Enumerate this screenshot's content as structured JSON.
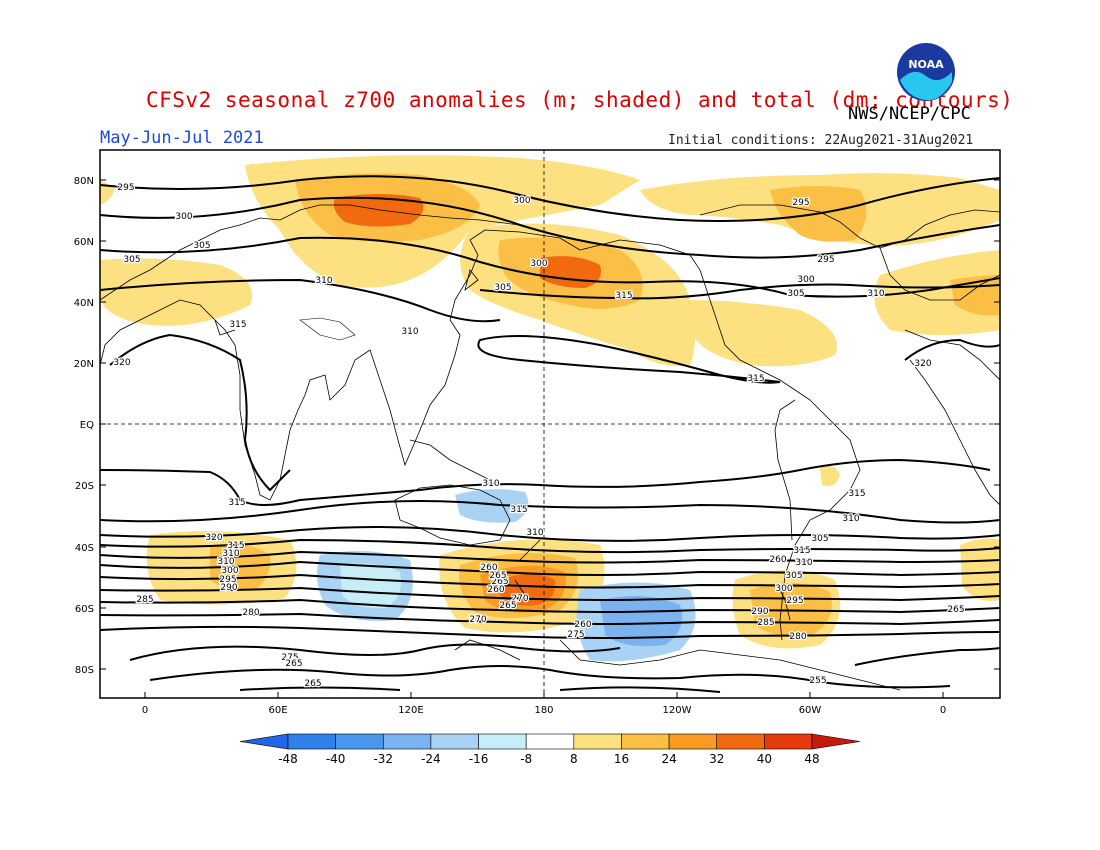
{
  "header": {
    "title": "CFSv2 seasonal z700 anomalies (m; shaded) and total (dm; contours)",
    "org": "NWS/NCEP/CPC",
    "period": "May-Jun-Jul 2021",
    "initial_conditions": "Initial conditions: 22Aug2021-31Aug2021",
    "logo_text": "NOAA"
  },
  "map": {
    "lon_labels": [
      "0",
      "60E",
      "120E",
      "180",
      "120W",
      "60W",
      "0"
    ],
    "lat_labels": [
      "80N",
      "60N",
      "40N",
      "20N",
      "EQ",
      "20S",
      "40S",
      "60S",
      "80S"
    ],
    "colorbar_labels": [
      "-48",
      "-40",
      "-32",
      "-24",
      "-16",
      "-8",
      "8",
      "16",
      "24",
      "32",
      "40",
      "48"
    ],
    "colorbar_colors": [
      "#2166e6",
      "#2f80e8",
      "#4a97ec",
      "#7ab3f0",
      "#a9d3f5",
      "#c7eef7",
      "#ffffff",
      "#fde080",
      "#fbbf45",
      "#f99a22",
      "#f26a10",
      "#e43a0c",
      "#c51b0c"
    ],
    "contour_labels": [
      "295",
      "300",
      "305",
      "310",
      "315",
      "320",
      "305",
      "310",
      "300",
      "305",
      "315",
      "300",
      "295",
      "295",
      "300",
      "305",
      "310",
      "315",
      "310",
      "315",
      "310",
      "315",
      "320",
      "315",
      "320",
      "315",
      "310",
      "310",
      "300",
      "295",
      "290",
      "285",
      "280",
      "275",
      "270",
      "265",
      "265",
      "260",
      "265",
      "260",
      "305",
      "310",
      "315",
      "310",
      "305",
      "300",
      "295",
      "290",
      "285",
      "280",
      "275",
      "270",
      "265",
      "255",
      "260",
      "265",
      "260",
      "265"
    ]
  }
}
